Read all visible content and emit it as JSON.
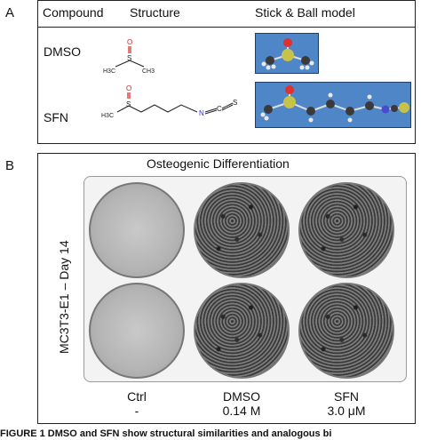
{
  "panelA": {
    "letter": "A",
    "headers": {
      "compound": "Compound",
      "structure": "Structure",
      "model": "Stick & Ball model"
    },
    "rows": [
      {
        "compound": "DMSO"
      },
      {
        "compound": "SFN"
      }
    ],
    "struct_labels": {
      "dmso": {
        "o": "O",
        "s": "S",
        "ch3_left": "H3C",
        "ch3_right": "CH3"
      },
      "sfn": {
        "o": "O",
        "s": "S",
        "h3c": "H3C",
        "n": "N",
        "c": "C",
        "s2": "S"
      }
    },
    "colors": {
      "model_bg": "#4f86c8",
      "atom_S": "#c7c24a",
      "atom_O": "#e03030",
      "atom_C": "#3a3a3a",
      "atom_N": "#4a4ad0",
      "atom_H": "#e8e8e8"
    }
  },
  "panelB": {
    "letter": "B",
    "title": "Osteogenic Differentiation",
    "ylabel": "MC3T3-E1 – Day 14",
    "conditions": [
      {
        "name": "Ctrl",
        "conc": "-"
      },
      {
        "name": "DMSO",
        "conc": "0.14 M"
      },
      {
        "name": "SFN",
        "conc": "3.0 μM"
      }
    ]
  },
  "caption": {
    "bold": "FIGURE 1 DMSO and SFN show structural similarities and analogous bi",
    "rest": ""
  }
}
